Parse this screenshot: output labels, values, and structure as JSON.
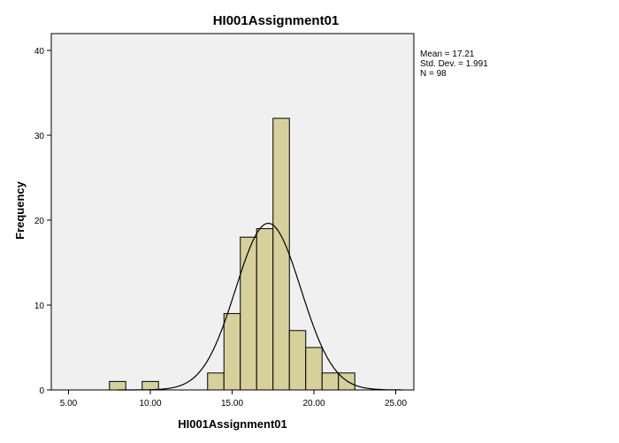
{
  "chart_data": {
    "type": "bar",
    "title": "HI001Assignment01",
    "xlabel": "HI001Assignment01",
    "ylabel": "Frequency",
    "xlim": [
      4,
      26
    ],
    "ylim": [
      0,
      42
    ],
    "xticks": [
      5,
      10,
      15,
      20,
      25
    ],
    "xtick_labels": [
      "5.00",
      "10.00",
      "15.00",
      "20.00",
      "25.00"
    ],
    "yticks": [
      0,
      10,
      20,
      30,
      40
    ],
    "ytick_labels": [
      "0",
      "10",
      "20",
      "30",
      "40"
    ],
    "bin_width": 1,
    "bins": [
      {
        "start": 7.5,
        "end": 8.5,
        "count": 1
      },
      {
        "start": 9.5,
        "end": 10.5,
        "count": 1
      },
      {
        "start": 13.5,
        "end": 14.5,
        "count": 2
      },
      {
        "start": 14.5,
        "end": 15.5,
        "count": 9
      },
      {
        "start": 15.5,
        "end": 16.5,
        "count": 18
      },
      {
        "start": 16.5,
        "end": 17.5,
        "count": 19
      },
      {
        "start": 17.5,
        "end": 18.5,
        "count": 32
      },
      {
        "start": 18.5,
        "end": 19.5,
        "count": 7
      },
      {
        "start": 19.5,
        "end": 20.5,
        "count": 5
      },
      {
        "start": 20.5,
        "end": 21.5,
        "count": 2
      },
      {
        "start": 21.5,
        "end": 22.5,
        "count": 2
      }
    ],
    "normal_curve": {
      "mean": 17.21,
      "std": 1.991,
      "n": 98
    },
    "grid": false,
    "legend": "none",
    "colors": {
      "bar_fill": "#d6d09c",
      "bar_stroke": "#000000",
      "plot_bg": "#f0f0f0",
      "curve": "#000000"
    }
  },
  "stats": {
    "mean_label": "Mean = 17.21",
    "std_label": "Std. Dev. = 1.991",
    "n_label": "N = 98"
  }
}
